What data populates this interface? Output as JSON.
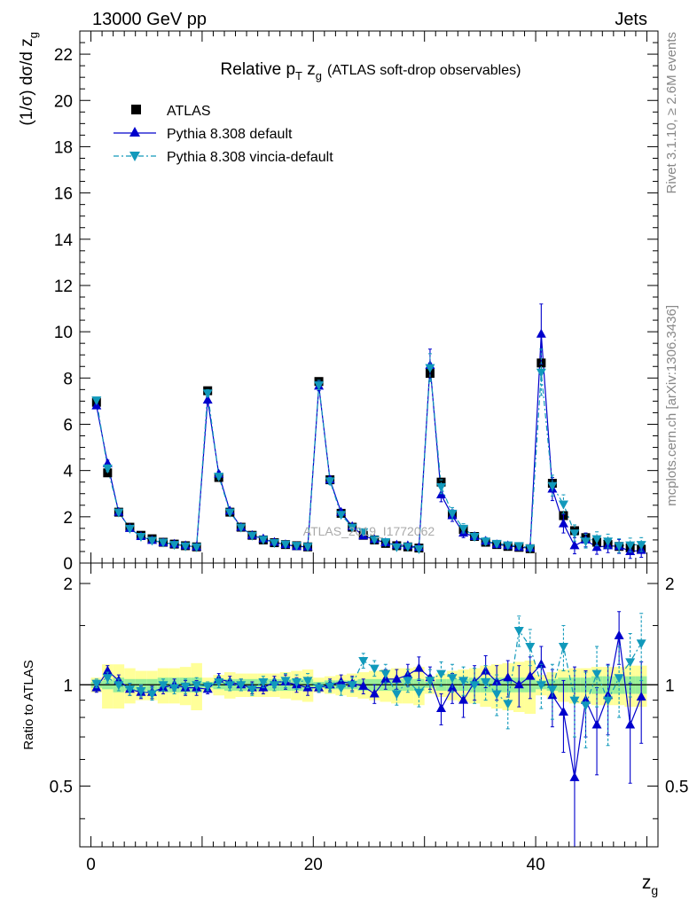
{
  "header": {
    "left": "13000 GeV pp",
    "right": "Jets"
  },
  "side_text": {
    "rivet": "Rivet 3.1.10, ≥ 2.6M events",
    "mcplots": "mcplots.cern.ch [arXiv:1306.3436]"
  },
  "watermark": "ATLAS_2019_I1772062",
  "colors": {
    "data": "#000000",
    "default": "#0000cc",
    "vincia": "#1199bb",
    "band_inner": "#99ee99",
    "band_outer": "#ffff99"
  },
  "chart_data": [
    {
      "type": "line",
      "title": "Relative p_T z_g (ATLAS soft-drop observables)",
      "title_parts": {
        "main": "Relative p",
        "sub_t": "T",
        "mid": " z",
        "sub_g": "g",
        "paren": "(ATLAS soft-drop observables)"
      },
      "ylabel": "(1/σ) dσ/d z_g",
      "ylabel_parts": {
        "main": "(1/σ) dσ/d z",
        "sub": "g"
      },
      "xlabel": "z_g",
      "xlabel_parts": {
        "main": "z",
        "sub": "g"
      },
      "xlim": [
        -1,
        51
      ],
      "ylim": [
        0,
        23
      ],
      "yticks": [
        0,
        2,
        4,
        6,
        8,
        10,
        12,
        14,
        16,
        18,
        20,
        22
      ],
      "legend": [
        "ATLAS",
        "Pythia 8.308 default",
        "Pythia 8.308 vincia-default"
      ],
      "legend_position": "top-left",
      "x": [
        0.5,
        1.5,
        2.5,
        3.5,
        4.5,
        5.5,
        6.5,
        7.5,
        8.5,
        9.5,
        10.5,
        11.5,
        12.5,
        13.5,
        14.5,
        15.5,
        16.5,
        17.5,
        18.5,
        19.5,
        20.5,
        21.5,
        22.5,
        23.5,
        24.5,
        25.5,
        26.5,
        27.5,
        28.5,
        29.5,
        30.5,
        31.5,
        32.5,
        33.5,
        34.5,
        35.5,
        36.5,
        37.5,
        38.5,
        39.5,
        40.5,
        41.5,
        42.5,
        43.5,
        44.5,
        45.5,
        46.5,
        47.5,
        48.5,
        49.5
      ],
      "series": [
        {
          "name": "ATLAS",
          "values": [
            6.95,
            3.9,
            2.2,
            1.55,
            1.2,
            1.05,
            0.9,
            0.82,
            0.75,
            0.7,
            7.45,
            3.7,
            2.2,
            1.55,
            1.2,
            1.0,
            0.88,
            0.8,
            0.75,
            0.7,
            7.85,
            3.6,
            2.15,
            1.55,
            1.2,
            1.0,
            0.85,
            0.75,
            0.7,
            0.65,
            8.2,
            3.5,
            2.1,
            1.45,
            1.15,
            0.9,
            0.8,
            0.72,
            0.68,
            0.62,
            8.65,
            3.45,
            2.05,
            1.4,
            1.1,
            0.9,
            0.8,
            0.72,
            0.66,
            0.6
          ],
          "errors": [
            0.1,
            0.1,
            0.08,
            0.06,
            0.05,
            0.05,
            0.04,
            0.04,
            0.04,
            0.04,
            0.15,
            0.1,
            0.08,
            0.06,
            0.05,
            0.05,
            0.04,
            0.04,
            0.04,
            0.04,
            0.15,
            0.1,
            0.08,
            0.06,
            0.05,
            0.05,
            0.04,
            0.04,
            0.04,
            0.04,
            0.2,
            0.12,
            0.1,
            0.08,
            0.06,
            0.06,
            0.05,
            0.05,
            0.05,
            0.05,
            0.25,
            0.15,
            0.12,
            0.1,
            0.08,
            0.08,
            0.07,
            0.07,
            0.07,
            0.07
          ]
        },
        {
          "name": "Pythia 8.308 default",
          "values": [
            6.8,
            4.3,
            2.2,
            1.5,
            1.15,
            0.98,
            0.88,
            0.82,
            0.75,
            0.7,
            7.05,
            3.85,
            2.25,
            1.55,
            1.2,
            1.05,
            0.9,
            0.8,
            0.72,
            0.7,
            7.65,
            3.6,
            2.2,
            1.58,
            1.18,
            1.02,
            0.88,
            0.78,
            0.75,
            0.68,
            8.55,
            2.95,
            2.05,
            1.3,
            1.15,
            0.95,
            0.8,
            0.75,
            0.68,
            0.65,
            9.9,
            3.2,
            1.7,
            0.75,
            1.0,
            0.68,
            0.75,
            0.72,
            0.5,
            0.55
          ],
          "errors": [
            0.1,
            0.15,
            0.1,
            0.08,
            0.06,
            0.06,
            0.05,
            0.05,
            0.05,
            0.05,
            0.15,
            0.12,
            0.1,
            0.08,
            0.06,
            0.06,
            0.05,
            0.05,
            0.05,
            0.05,
            0.2,
            0.15,
            0.12,
            0.1,
            0.08,
            0.08,
            0.07,
            0.07,
            0.07,
            0.07,
            0.7,
            0.3,
            0.25,
            0.2,
            0.15,
            0.15,
            0.12,
            0.12,
            0.12,
            0.12,
            1.3,
            0.5,
            0.4,
            0.35,
            0.3,
            0.3,
            0.3,
            0.3,
            0.3,
            0.3
          ]
        },
        {
          "name": "Pythia 8.308 vincia-default",
          "values": [
            7.05,
            4.1,
            2.2,
            1.5,
            1.15,
            0.98,
            0.9,
            0.8,
            0.74,
            0.7,
            7.35,
            3.75,
            2.2,
            1.55,
            1.2,
            1.02,
            0.88,
            0.82,
            0.76,
            0.72,
            7.7,
            3.55,
            2.1,
            1.55,
            1.35,
            1.02,
            0.92,
            0.7,
            0.72,
            0.62,
            8.45,
            3.3,
            2.15,
            1.5,
            1.15,
            0.95,
            0.85,
            0.78,
            0.75,
            0.65,
            8.25,
            3.35,
            2.55,
            1.3,
            0.95,
            1.05,
            0.95,
            0.75,
            0.78,
            0.8
          ],
          "errors": [
            0.1,
            0.15,
            0.1,
            0.08,
            0.06,
            0.06,
            0.05,
            0.05,
            0.05,
            0.05,
            0.15,
            0.12,
            0.1,
            0.08,
            0.06,
            0.06,
            0.05,
            0.05,
            0.05,
            0.05,
            0.2,
            0.15,
            0.12,
            0.1,
            0.08,
            0.08,
            0.07,
            0.07,
            0.07,
            0.07,
            0.6,
            0.3,
            0.25,
            0.2,
            0.15,
            0.15,
            0.12,
            0.12,
            0.12,
            0.12,
            1.0,
            0.45,
            0.4,
            0.35,
            0.3,
            0.3,
            0.3,
            0.3,
            0.3,
            0.3
          ]
        }
      ]
    },
    {
      "type": "line",
      "ylabel": "Ratio to ATLAS",
      "xlim": [
        -1,
        51
      ],
      "ylim": [
        0.33,
        2.3
      ],
      "yscale": "log",
      "yticks": [
        0.5,
        1,
        2
      ],
      "xticks": [
        0,
        20,
        40
      ],
      "band": {
        "inner_half_width": [
          0.02,
          0.03,
          0.05,
          0.04,
          0.04,
          0.04,
          0.05,
          0.05,
          0.05,
          0.05,
          0.02,
          0.03,
          0.04,
          0.04,
          0.04,
          0.04,
          0.04,
          0.04,
          0.04,
          0.04,
          0.02,
          0.03,
          0.03,
          0.03,
          0.04,
          0.04,
          0.04,
          0.04,
          0.04,
          0.04,
          0.02,
          0.04,
          0.04,
          0.04,
          0.05,
          0.05,
          0.05,
          0.05,
          0.05,
          0.05,
          0.03,
          0.04,
          0.05,
          0.05,
          0.05,
          0.06,
          0.06,
          0.06,
          0.06,
          0.06
        ],
        "outer_half_width": [
          0.05,
          0.15,
          0.15,
          0.12,
          0.1,
          0.1,
          0.12,
          0.12,
          0.13,
          0.16,
          0.05,
          0.07,
          0.09,
          0.08,
          0.08,
          0.08,
          0.08,
          0.09,
          0.1,
          0.11,
          0.05,
          0.06,
          0.07,
          0.08,
          0.09,
          0.1,
          0.11,
          0.12,
          0.12,
          0.13,
          0.06,
          0.08,
          0.1,
          0.11,
          0.12,
          0.14,
          0.15,
          0.16,
          0.17,
          0.18,
          0.07,
          0.09,
          0.11,
          0.12,
          0.12,
          0.13,
          0.13,
          0.13,
          0.14,
          0.14
        ]
      },
      "series": [
        {
          "name": "Pythia 8.308 default",
          "values": [
            0.98,
            1.1,
            1.03,
            0.97,
            0.95,
            0.95,
            0.98,
            1.0,
            0.98,
            0.98,
            0.97,
            1.04,
            1.02,
            1.0,
            0.98,
            0.98,
            1.02,
            1.02,
            1.0,
            0.98,
            0.98,
            1.0,
            1.02,
            1.01,
            0.99,
            0.94,
            1.04,
            1.04,
            1.07,
            1.12,
            1.05,
            0.85,
            0.98,
            0.9,
            1.02,
            1.1,
            1.02,
            1.05,
            1.0,
            1.06,
            1.15,
            0.93,
            0.83,
            0.53,
            0.9,
            0.76,
            0.93,
            1.4,
            0.76,
            0.92
          ],
          "errors": [
            0.03,
            0.04,
            0.04,
            0.04,
            0.04,
            0.04,
            0.04,
            0.04,
            0.05,
            0.05,
            0.03,
            0.04,
            0.04,
            0.04,
            0.04,
            0.04,
            0.04,
            0.05,
            0.05,
            0.05,
            0.03,
            0.04,
            0.05,
            0.05,
            0.05,
            0.06,
            0.07,
            0.07,
            0.08,
            0.09,
            0.08,
            0.09,
            0.1,
            0.1,
            0.12,
            0.12,
            0.12,
            0.13,
            0.14,
            0.15,
            0.15,
            0.18,
            0.2,
            0.2,
            0.2,
            0.22,
            0.22,
            0.25,
            0.25,
            0.25
          ]
        },
        {
          "name": "Pythia 8.308 vincia-default",
          "values": [
            1.01,
            1.05,
            1.0,
            0.97,
            0.96,
            0.94,
            1.0,
            0.98,
            0.99,
            1.0,
            0.99,
            1.02,
            1.0,
            1.0,
            0.97,
            1.02,
            1.0,
            1.03,
            1.02,
            1.03,
            0.98,
            0.99,
            0.98,
            1.0,
            1.18,
            1.12,
            1.08,
            0.94,
            1.03,
            0.95,
            1.03,
            1.08,
            1.05,
            1.03,
            1.0,
            1.02,
            0.94,
            0.88,
            1.45,
            1.3,
            1.0,
            0.97,
            1.3,
            0.9,
            0.87,
            1.08,
            0.9,
            1.05,
            1.17,
            1.33
          ],
          "errors": [
            0.03,
            0.04,
            0.04,
            0.04,
            0.04,
            0.04,
            0.04,
            0.04,
            0.05,
            0.05,
            0.03,
            0.04,
            0.04,
            0.04,
            0.04,
            0.04,
            0.04,
            0.05,
            0.05,
            0.05,
            0.03,
            0.04,
            0.05,
            0.05,
            0.06,
            0.06,
            0.07,
            0.07,
            0.08,
            0.09,
            0.08,
            0.09,
            0.1,
            0.1,
            0.12,
            0.12,
            0.13,
            0.14,
            0.15,
            0.16,
            0.15,
            0.18,
            0.2,
            0.2,
            0.22,
            0.22,
            0.24,
            0.25,
            0.25,
            0.3
          ]
        }
      ]
    }
  ]
}
